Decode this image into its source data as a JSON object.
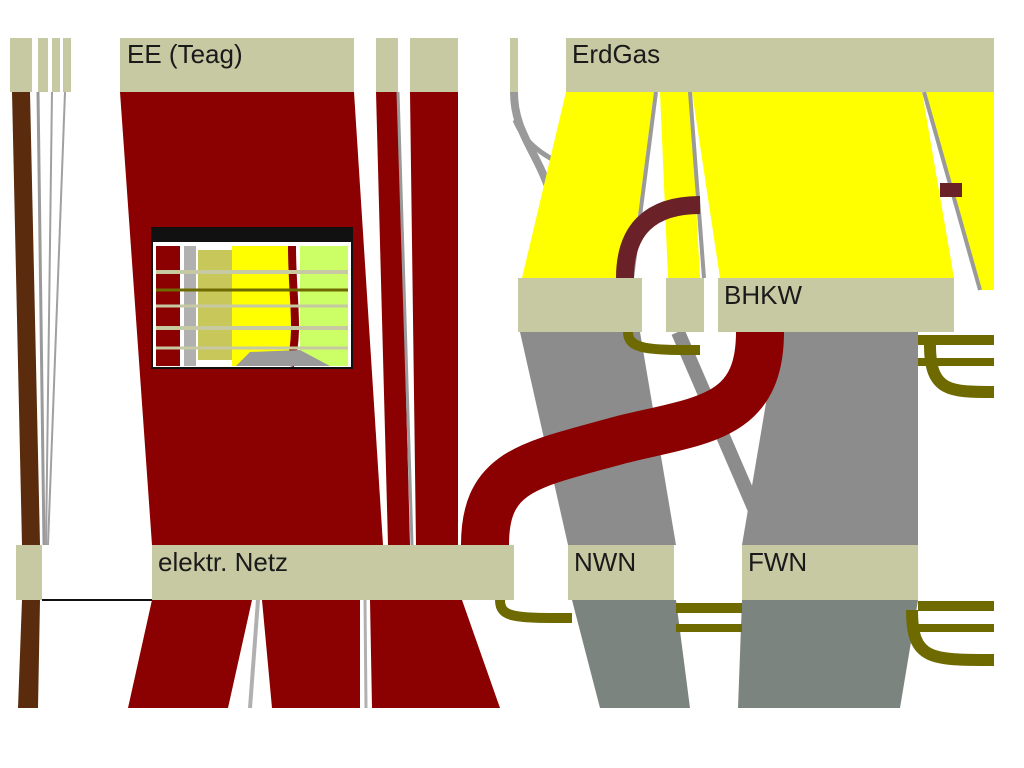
{
  "diagram": {
    "type": "sankey-energy-flow",
    "nodes": {
      "ee_teag": {
        "label": "EE (Teag)"
      },
      "erdgas": {
        "label": "ErdGas"
      },
      "bhkw": {
        "label": "BHKW"
      },
      "elektr_netz": {
        "label": "elektr. Netz"
      },
      "nwn": {
        "label": "NWN"
      },
      "fwn": {
        "label": "FWN"
      }
    },
    "colors": {
      "node_fill": "#c6c9a2",
      "electricity": "#8b0000",
      "gas": "#ffff00",
      "heat": "#8c8c8c",
      "heat_dark": "#7c8480",
      "return": "#6e6a00",
      "brown": "#5a2b0c",
      "bordeaux": "#6a2228"
    }
  }
}
